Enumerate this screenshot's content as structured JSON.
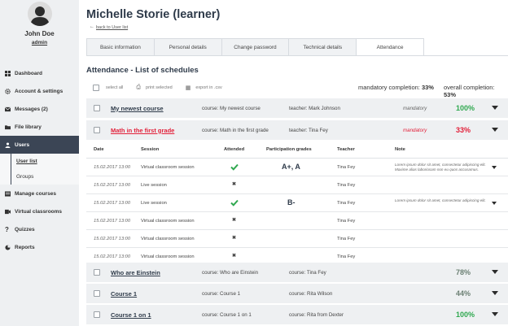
{
  "sidebar": {
    "user_name": "John Doe",
    "user_role": "admin",
    "items": [
      {
        "label": "Dashboard",
        "icon": "dashboard-icon"
      },
      {
        "label": "Account & settings",
        "icon": "gear-icon"
      },
      {
        "label": "Messages (2)",
        "icon": "envelope-icon"
      },
      {
        "label": "File library",
        "icon": "folder-icon"
      },
      {
        "label": "Users",
        "icon": "users-icon"
      },
      {
        "label": "Manage courses",
        "icon": "courses-icon"
      },
      {
        "label": "Virtual classrooms",
        "icon": "classroom-icon"
      },
      {
        "label": "Quizzes",
        "icon": "question-icon"
      },
      {
        "label": "Reports",
        "icon": "reports-icon"
      }
    ],
    "sub_items": [
      {
        "label": "User list"
      },
      {
        "label": "Groups"
      }
    ]
  },
  "header": {
    "title": "Michelle Storie (learner)",
    "back_link": "back to User list"
  },
  "tabs": [
    {
      "label": "Basic information"
    },
    {
      "label": "Personal details"
    },
    {
      "label": "Change password"
    },
    {
      "label": "Technical details"
    },
    {
      "label": "Attendance"
    }
  ],
  "attendance": {
    "title": "Attendance - List of schedules",
    "toolbar": {
      "select_all": "select all",
      "print_selected": "print selected",
      "export_csv": "export in .csv"
    },
    "mandatory_completion_label": "mandatory completion:",
    "mandatory_completion_value": "33%",
    "overall_completion_label": "overall completion:",
    "overall_completion_value": "53%"
  },
  "courses": [
    {
      "name": "My newest course",
      "course": "course:  My newest course",
      "teacher": "teacher:  Mark Johnson",
      "status": "mandatory",
      "percent": "100%",
      "pct_color": "#2fa84f"
    },
    {
      "name": "Math in the first grade",
      "course": "course:  Math in the first grade",
      "teacher": "teacher:  Tina Fey",
      "status": "mandatory",
      "percent": "33%",
      "pct_color": "#e2213a"
    },
    {
      "name": "Who are Einstein",
      "course": "course:  Who are Einstein",
      "teacher": "course:  Tina Fey",
      "status": "",
      "percent": "78%",
      "pct_color": "#6b7f73"
    },
    {
      "name": "Course 1",
      "course": "course:  Course 1",
      "teacher": "course:  Rita Wilson",
      "status": "",
      "percent": "44%",
      "pct_color": "#6b7f73"
    },
    {
      "name": "Course 1 on 1",
      "course": "course:  Course 1 on 1",
      "teacher": "course:  Rita from Dexter",
      "status": "",
      "percent": "100%",
      "pct_color": "#2fa84f"
    }
  ],
  "schedule": {
    "headers": {
      "date": "Date",
      "session": "Session",
      "attended": "Attended",
      "grades": "Participation grades",
      "teacher": "Teacher",
      "note": "Note"
    },
    "rows": [
      {
        "date": "15.02.2017 13:00",
        "session": "Virtual classroom session",
        "attended": true,
        "grade": "A+, A",
        "teacher": "Tina Fey",
        "note": "Lorem ipsum dolor sit amet, consectetur adipiscing elit. Maxime alias laboriosam non eu quos accusamus."
      },
      {
        "date": "15.02.2017 13:00",
        "session": "Live session",
        "attended": false,
        "grade": "",
        "teacher": "Tina Fey",
        "note": ""
      },
      {
        "date": "15.02.2017 13:00",
        "session": "Live session",
        "attended": true,
        "grade": "B-",
        "teacher": "Tina Fey",
        "note": "Lorem ipsum dolor sit amet, consectetur adipiscing elit."
      },
      {
        "date": "15.02.2017 13:00",
        "session": "Virtual classroom session",
        "attended": false,
        "grade": "",
        "teacher": "Tina Fey",
        "note": ""
      },
      {
        "date": "15.02.2017 13:00",
        "session": "Virtual classroom session",
        "attended": false,
        "grade": "",
        "teacher": "Tina Fey",
        "note": ""
      },
      {
        "date": "15.02.2017 13:00",
        "session": "Virtual classroom session",
        "attended": false,
        "grade": "",
        "teacher": "Tina Fey",
        "note": ""
      }
    ]
  }
}
